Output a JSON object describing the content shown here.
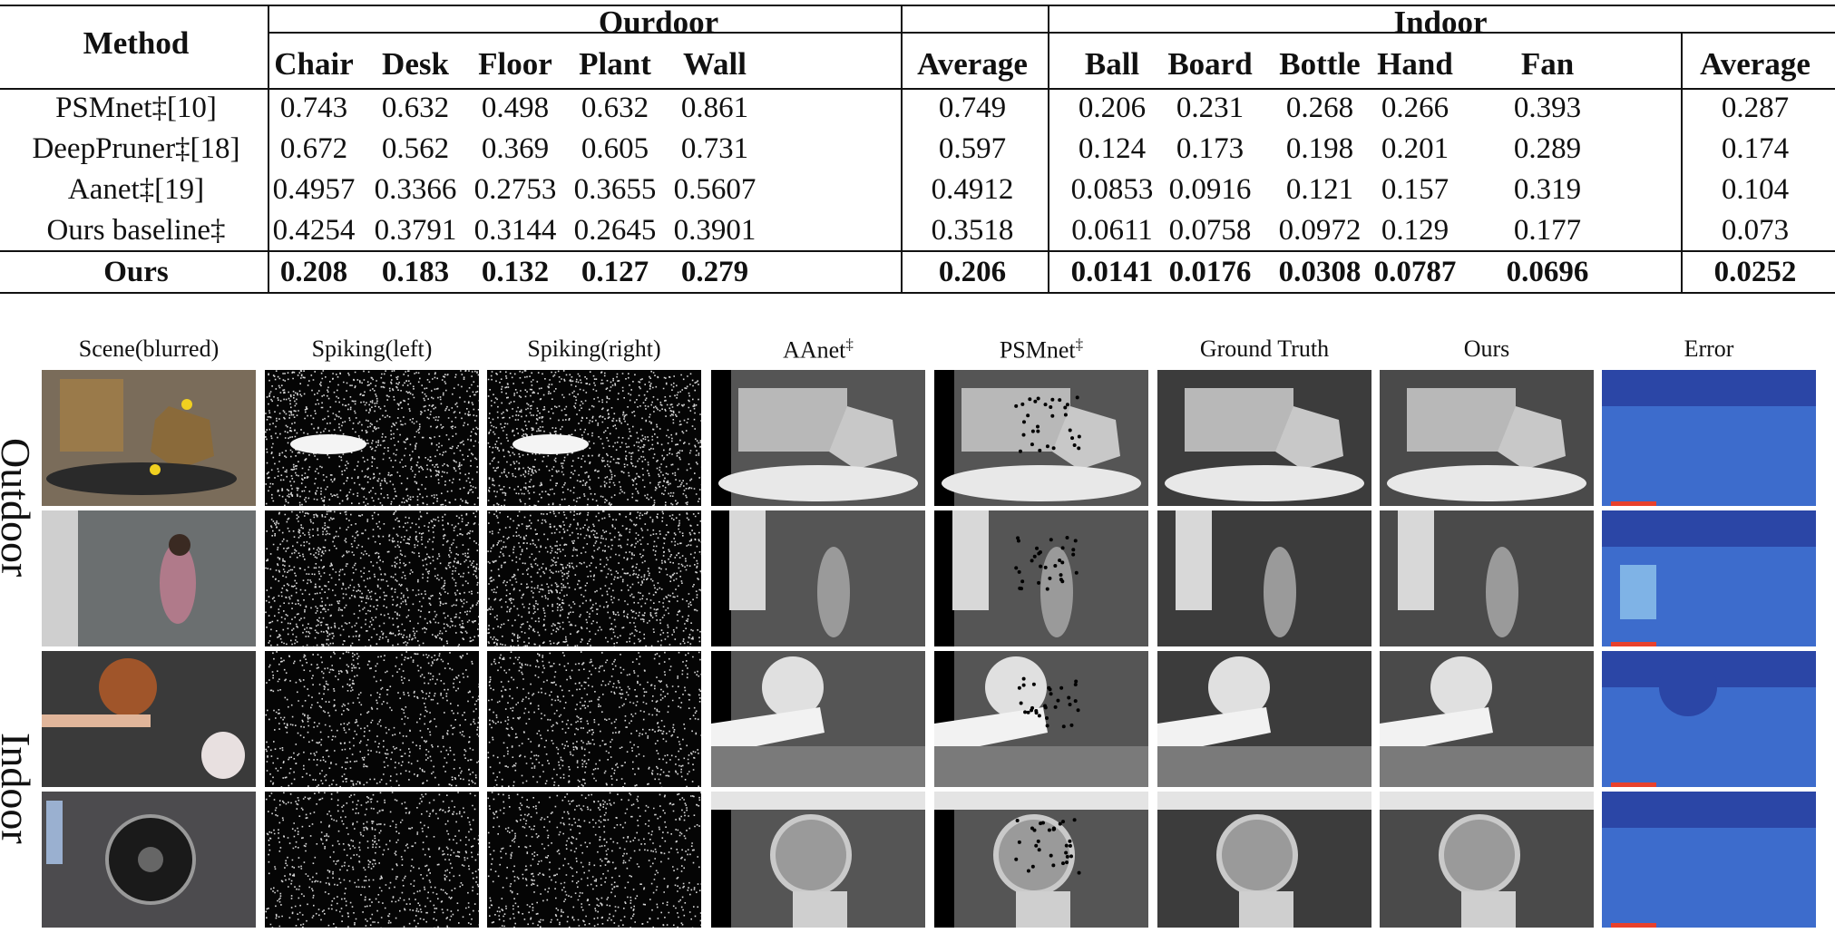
{
  "table": {
    "method_header": "Method",
    "groups": [
      {
        "label": "Ourdoor",
        "columns": [
          "Chair",
          "Desk",
          "Floor",
          "Plant",
          "Wall",
          "Average"
        ]
      },
      {
        "label": "Indoor",
        "columns": [
          "Ball",
          "Board",
          "Bottle",
          "Hand",
          "Fan",
          "Average"
        ]
      }
    ],
    "rows": [
      {
        "method": "PSMnet‡[10]",
        "bold": false,
        "values": [
          "0.743",
          "0.632",
          "0.498",
          "0.632",
          "0.861",
          "0.749",
          "0.206",
          "0.231",
          "0.268",
          "0.266",
          "0.393",
          "0.287"
        ]
      },
      {
        "method": "DeepPruner‡[18]",
        "bold": false,
        "values": [
          "0.672",
          "0.562",
          "0.369",
          "0.605",
          "0.731",
          "0.597",
          "0.124",
          "0.173",
          "0.198",
          "0.201",
          "0.289",
          "0.174"
        ]
      },
      {
        "method": "Aanet‡[19]",
        "bold": false,
        "values": [
          "0.4957",
          "0.3366",
          "0.2753",
          "0.3655",
          "0.5607",
          "0.4912",
          "0.0853",
          "0.0916",
          "0.121",
          "0.157",
          "0.319",
          "0.104"
        ]
      },
      {
        "method": "Ours baseline‡",
        "bold": false,
        "values": [
          "0.4254",
          "0.3791",
          "0.3144",
          "0.2645",
          "0.3901",
          "0.3518",
          "0.0611",
          "0.0758",
          "0.0972",
          "0.129",
          "0.177",
          "0.073"
        ]
      },
      {
        "method": "Ours",
        "bold": true,
        "values": [
          "0.208",
          "0.183",
          "0.132",
          "0.127",
          "0.279",
          "0.206",
          "0.0141",
          "0.0176",
          "0.0308",
          "0.0787",
          "0.0696",
          "0.0252"
        ]
      }
    ]
  },
  "figure": {
    "column_titles": [
      {
        "text": "Scene(blurred)",
        "sup": ""
      },
      {
        "text": "Spiking(left)",
        "sup": ""
      },
      {
        "text": "Spiking(right)",
        "sup": ""
      },
      {
        "text": "AAnet",
        "sup": "‡"
      },
      {
        "text": "PSMnet",
        "sup": "‡"
      },
      {
        "text": "Ground Truth",
        "sup": ""
      },
      {
        "text": "Ours",
        "sup": ""
      },
      {
        "text": "Error",
        "sup": ""
      }
    ],
    "row_groups": [
      "Outdoor",
      "Indoor"
    ],
    "panel_kinds": [
      "scene",
      "spike",
      "spike",
      "depth-a",
      "depth-p",
      "depth-gt",
      "depth-ours",
      "error"
    ],
    "colors": {
      "error_dark": "#2b46a6",
      "error_mid": "#3d6ccc",
      "error_light": "#7fb3e6",
      "error_hot": "#e8412c"
    }
  }
}
